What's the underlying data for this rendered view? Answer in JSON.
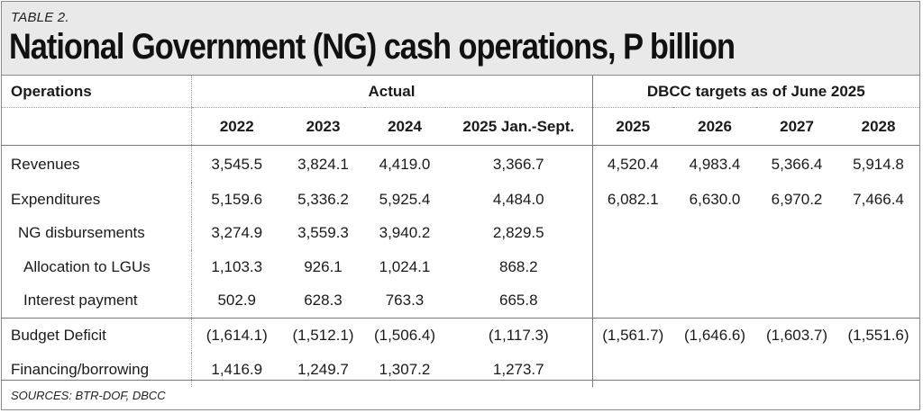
{
  "table_label": "TABLE 2.",
  "title": "National Government (NG) cash operations, P billion",
  "header": {
    "operations": "Operations",
    "actual": "Actual",
    "targets": "DBCC targets as of June 2025",
    "actual_years": [
      "2022",
      "2023",
      "2024",
      "2025 Jan.-Sept."
    ],
    "target_years": [
      "2025",
      "2026",
      "2027",
      "2028"
    ]
  },
  "rows": [
    {
      "label": "Revenues",
      "actual": [
        "3,545.5",
        "3,824.1",
        "4,419.0",
        "3,366.7"
      ],
      "targets": [
        "4,520.4",
        "4,983.4",
        "5,366.4",
        "5,914.8"
      ]
    },
    {
      "label": "Expenditures",
      "actual": [
        "5,159.6",
        "5,336.2",
        "5,925.4",
        "4,484.0"
      ],
      "targets": [
        "6,082.1",
        "6,630.0",
        "6,970.2",
        "7,466.4"
      ]
    },
    {
      "label": "NG disbursements",
      "actual": [
        "3,274.9",
        "3,559.3",
        "3,940.2",
        "2,829.5"
      ],
      "targets": [
        "",
        "",
        "",
        ""
      ]
    },
    {
      "label": "Allocation to LGUs",
      "actual": [
        "1,103.3",
        "926.1",
        "1,024.1",
        "868.2"
      ],
      "targets": [
        "",
        "",
        "",
        ""
      ]
    },
    {
      "label": "Interest payment",
      "actual": [
        "502.9",
        "628.3",
        "763.3",
        "665.8"
      ],
      "targets": [
        "",
        "",
        "",
        ""
      ]
    },
    {
      "label": "Budget Deficit",
      "actual": [
        "(1,614.1)",
        "(1,512.1)",
        "(1,506.4)",
        "(1,117.3)"
      ],
      "targets": [
        "(1,561.7)",
        "(1,646.6)",
        "(1,603.7)",
        "(1,551.6)"
      ]
    },
    {
      "label": "Financing/borrowing",
      "actual": [
        "1,416.9",
        "1,249.7",
        "1,307.2",
        "1,273.7"
      ],
      "targets": [
        "",
        "",
        "",
        ""
      ]
    }
  ],
  "sources": "SOURCES: BTR-DOF, DBCC"
}
